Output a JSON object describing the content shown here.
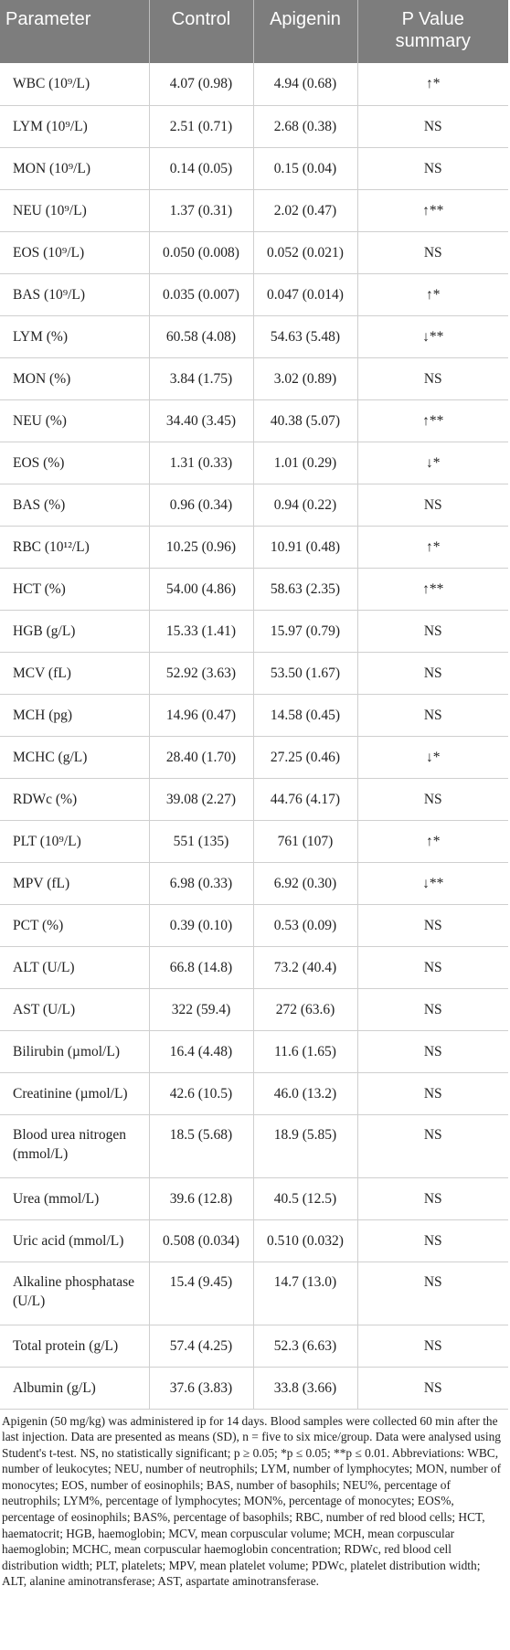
{
  "table": {
    "headers": [
      "Parameter",
      "Control",
      "Apigenin",
      "P Value summary"
    ],
    "rows": [
      [
        "WBC (10⁹/L)",
        "4.07 (0.98)",
        "4.94 (0.68)",
        "↑*"
      ],
      [
        "LYM (10⁹/L)",
        "2.51 (0.71)",
        "2.68 (0.38)",
        "NS"
      ],
      [
        "MON (10⁹/L)",
        "0.14 (0.05)",
        "0.15 (0.04)",
        "NS"
      ],
      [
        "NEU (10⁹/L)",
        "1.37 (0.31)",
        "2.02 (0.47)",
        "↑**"
      ],
      [
        "EOS (10⁹/L)",
        "0.050 (0.008)",
        "0.052 (0.021)",
        "NS"
      ],
      [
        "BAS (10⁹/L)",
        "0.035 (0.007)",
        "0.047 (0.014)",
        "↑*"
      ],
      [
        "LYM (%)",
        "60.58 (4.08)",
        "54.63 (5.48)",
        "↓**"
      ],
      [
        "MON (%)",
        "3.84 (1.75)",
        "3.02 (0.89)",
        "NS"
      ],
      [
        "NEU (%)",
        "34.40 (3.45)",
        "40.38 (5.07)",
        "↑**"
      ],
      [
        "EOS (%)",
        "1.31 (0.33)",
        "1.01 (0.29)",
        "↓*"
      ],
      [
        "BAS (%)",
        "0.96 (0.34)",
        "0.94 (0.22)",
        "NS"
      ],
      [
        "RBC (10¹²/L)",
        "10.25 (0.96)",
        "10.91 (0.48)",
        "↑*"
      ],
      [
        "HCT (%)",
        "54.00 (4.86)",
        "58.63 (2.35)",
        "↑**"
      ],
      [
        "HGB (g/L)",
        "15.33 (1.41)",
        "15.97 (0.79)",
        "NS"
      ],
      [
        "MCV (fL)",
        "52.92 (3.63)",
        "53.50 (1.67)",
        "NS"
      ],
      [
        "MCH (pg)",
        "14.96 (0.47)",
        "14.58 (0.45)",
        "NS"
      ],
      [
        "MCHC (g/L)",
        "28.40 (1.70)",
        "27.25 (0.46)",
        "↓*"
      ],
      [
        "RDWc (%)",
        "39.08 (2.27)",
        "44.76 (4.17)",
        "NS"
      ],
      [
        "PLT (10⁹/L)",
        "551 (135)",
        "761 (107)",
        "↑*"
      ],
      [
        "MPV (fL)",
        "6.98 (0.33)",
        "6.92 (0.30)",
        "↓**"
      ],
      [
        "PCT (%)",
        "0.39 (0.10)",
        "0.53 (0.09)",
        "NS"
      ],
      [
        "ALT (U/L)",
        "66.8 (14.8)",
        "73.2 (40.4)",
        "NS"
      ],
      [
        "AST (U/L)",
        "322 (59.4)",
        "272 (63.6)",
        "NS"
      ],
      [
        "Bilirubin (µmol/L)",
        "16.4 (4.48)",
        "11.6 (1.65)",
        "NS"
      ],
      [
        "Creatinine (µmol/L)",
        "42.6 (10.5)",
        "46.0 (13.2)",
        "NS"
      ],
      [
        "Blood urea nitrogen (mmol/L)",
        "18.5 (5.68)",
        "18.9 (5.85)",
        "NS"
      ],
      [
        "Urea (mmol/L)",
        "39.6 (12.8)",
        "40.5 (12.5)",
        "NS"
      ],
      [
        "Uric acid (mmol/L)",
        "0.508 (0.034)",
        "0.510 (0.032)",
        "NS"
      ],
      [
        "Alkaline phosphatase (U/L)",
        "15.4 (9.45)",
        "14.7 (13.0)",
        "NS"
      ],
      [
        "Total protein (g/L)",
        "57.4 (4.25)",
        "52.3 (6.63)",
        "NS"
      ],
      [
        "Albumin (g/L)",
        "37.6 (3.83)",
        "33.8 (3.66)",
        "NS"
      ]
    ]
  },
  "footnote": "Apigenin (50 mg/kg) was administered ip for 14 days. Blood samples were collected 60 min after the last injection. Data are presented as means (SD), n = five to six mice/group. Data were analysed using Student's t-test. NS, no statistically significant; p ≥ 0.05; *p ≤ 0.05; **p ≤ 0.01. Abbreviations: WBC, number of leukocytes; NEU, number of neutrophils; LYM, number of lymphocytes; MON, number of monocytes; EOS, number of eosinophils; BAS, number of basophils; NEU%, percentage of neutrophils; LYM%, percentage of lymphocytes; MON%, percentage of monocytes; EOS%, percentage of eosinophils; BAS%, percentage of basophils; RBC, number of red blood cells; HCT, haematocrit; HGB, haemoglobin; MCV, mean corpuscular volume; MCH, mean corpuscular haemoglobin; MCHC, mean corpuscular haemoglobin concentration; RDWc, red blood cell distribution width; PLT, platelets; MPV, mean platelet volume; PDWc, platelet distribution width; ALT, alanine aminotransferase; AST, aspartate aminotransferase."
}
